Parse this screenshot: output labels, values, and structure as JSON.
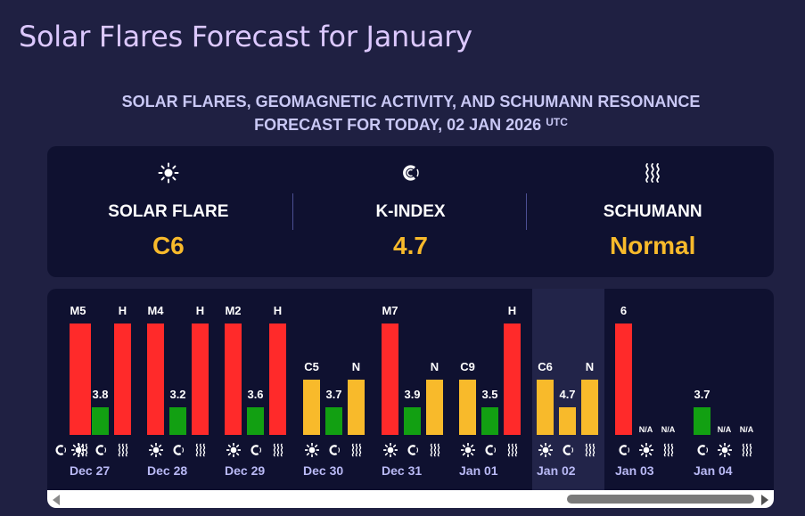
{
  "page_title": "Solar Flares Forecast for January",
  "subtitle": {
    "line1": "SOLAR FLARES, GEOMAGNETIC ACTIVITY, AND SCHUMANN RESONANCE",
    "line2": "FORECAST FOR TODAY, 02 JAN 2026",
    "sup": "UTC"
  },
  "summary": {
    "solar_flare": {
      "icon": "sun-icon",
      "label": "SOLAR FLARE",
      "value": "C6"
    },
    "k_index": {
      "icon": "magnet-icon",
      "label": "K-INDEX",
      "value": "4.7"
    },
    "schumann": {
      "icon": "waves-icon",
      "label": "SCHUMANN",
      "value": "Normal"
    }
  },
  "colors": {
    "high": "#ff2a2a",
    "low": "#12a012",
    "moderate": "#f8ba2b",
    "accent": "#f8ba2b",
    "title": "#dcc8ff"
  },
  "chart_data": {
    "type": "bar",
    "series": [
      "solar flare",
      "K-index",
      "Schumann"
    ],
    "days": [
      {
        "date": "",
        "flare": "",
        "flare_level": "high",
        "kindex": null,
        "kindex_level": null,
        "schumann": "",
        "schumann_level": "high",
        "partial": true
      },
      {
        "date": "Dec 27",
        "flare": "M5",
        "flare_level": "high",
        "kindex": 3.8,
        "kindex_level": "low",
        "schumann": "H",
        "schumann_level": "high"
      },
      {
        "date": "Dec 28",
        "flare": "M4",
        "flare_level": "high",
        "kindex": 3.2,
        "kindex_level": "low",
        "schumann": "H",
        "schumann_level": "high"
      },
      {
        "date": "Dec 29",
        "flare": "M2",
        "flare_level": "high",
        "kindex": 3.6,
        "kindex_level": "low",
        "schumann": "H",
        "schumann_level": "high"
      },
      {
        "date": "Dec 30",
        "flare": "C5",
        "flare_level": "moderate",
        "kindex": 3.7,
        "kindex_level": "low",
        "schumann": "N",
        "schumann_level": "moderate"
      },
      {
        "date": "Dec 31",
        "flare": "M7",
        "flare_level": "high",
        "kindex": 3.9,
        "kindex_level": "low",
        "schumann": "N",
        "schumann_level": "moderate"
      },
      {
        "date": "Jan 01",
        "flare": "C9",
        "flare_level": "moderate",
        "kindex": 3.5,
        "kindex_level": "low",
        "schumann": "H",
        "schumann_level": "high"
      },
      {
        "date": "Jan 02",
        "flare": "C6",
        "flare_level": "moderate",
        "kindex": 4.7,
        "kindex_level": "moderate",
        "schumann": "N",
        "schumann_level": "moderate",
        "today": true
      },
      {
        "date": "Jan 03",
        "kindex": 6,
        "kindex_level": "high",
        "flare": "N/A",
        "schumann": "N/A",
        "order": [
          "kindex",
          "flare",
          "schumann"
        ]
      },
      {
        "date": "Jan 04",
        "kindex": 3.7,
        "kindex_level": "low",
        "flare": "N/A",
        "schumann": "N/A",
        "order": [
          "kindex",
          "flare",
          "schumann"
        ]
      }
    ]
  },
  "scrollbar": {
    "left_arrow": "scroll-left",
    "right_arrow": "scroll-right"
  }
}
